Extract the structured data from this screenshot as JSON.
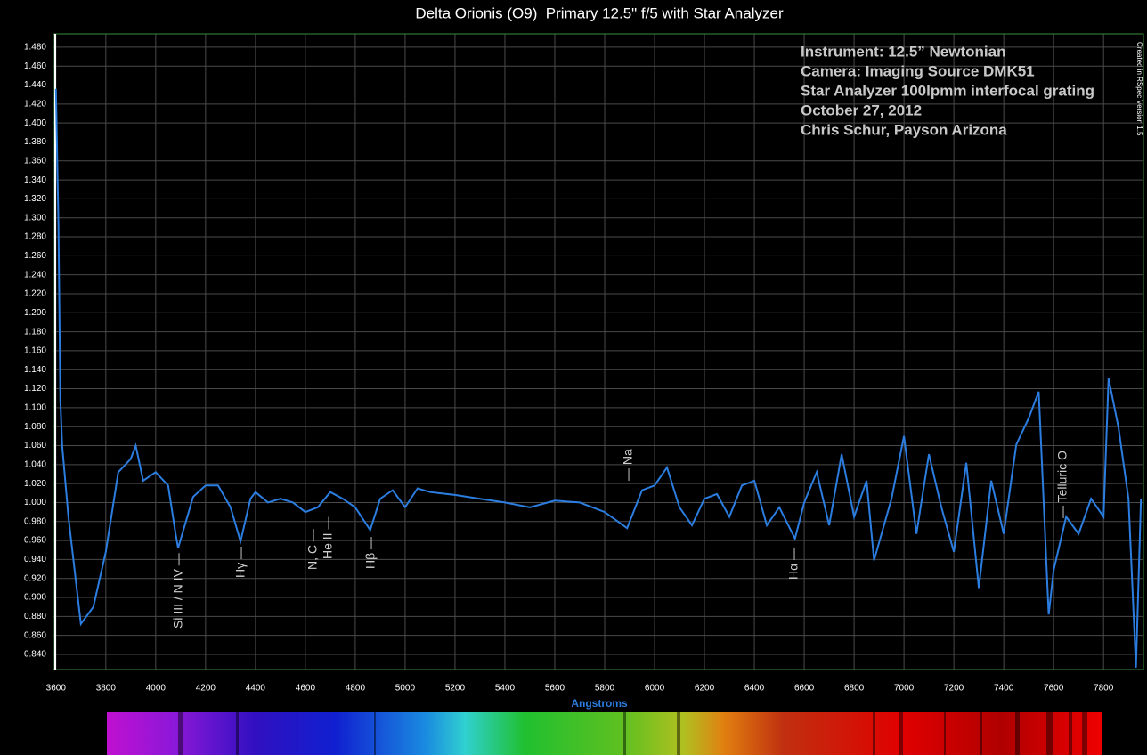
{
  "chart_data": {
    "type": "line",
    "title": "Delta Orionis (O9)  Primary 12.5\" f/5 with Star Analyzer",
    "x_label": "Angstroms",
    "watermark": "Created in RSpec Version 1.5",
    "info_lines": [
      "Instrument:  12.5” Newtonian",
      "Camera:  Imaging Source DMK51",
      "Star Analyzer 100lpmm interfocal grating",
      "October 27, 2012",
      "Chris Schur, Payson Arizona"
    ],
    "line_labels": [
      "Si III / N IV —",
      "Hγ —",
      "N, C —",
      "He II —",
      "Hβ —",
      "— Na",
      "Hα —",
      "— Telluric O"
    ],
    "color": "#2b7de0",
    "grid": true,
    "xlim": [
      3590,
      7960
    ],
    "ylim": [
      0.824,
      1.494
    ],
    "xticks": [
      3600,
      3800,
      4000,
      4200,
      4400,
      4600,
      4800,
      5000,
      5200,
      5400,
      5600,
      5800,
      6000,
      6200,
      6400,
      6600,
      6800,
      7000,
      7200,
      7400,
      7600,
      7800
    ],
    "yticks": [
      {
        "value": 0.84,
        "label": "0.840"
      },
      {
        "value": 0.86,
        "label": "0.860"
      },
      {
        "value": 0.88,
        "label": "0.880"
      },
      {
        "value": 0.9,
        "label": "0.900"
      },
      {
        "value": 0.92,
        "label": "0.920"
      },
      {
        "value": 0.94,
        "label": "0.940"
      },
      {
        "value": 0.96,
        "label": "0.960"
      },
      {
        "value": 0.98,
        "label": "0.980"
      },
      {
        "value": 1.0,
        "label": "1.000"
      },
      {
        "value": 1.02,
        "label": "1.020"
      },
      {
        "value": 1.04,
        "label": "1.040"
      },
      {
        "value": 1.06,
        "label": "1.060"
      },
      {
        "value": 1.08,
        "label": "1.080"
      },
      {
        "value": 1.1,
        "label": "1.100"
      },
      {
        "value": 1.12,
        "label": "1.120"
      },
      {
        "value": 1.14,
        "label": "1.140"
      },
      {
        "value": 1.16,
        "label": "1.160"
      },
      {
        "value": 1.18,
        "label": "1.180"
      },
      {
        "value": 1.2,
        "label": "1.200"
      },
      {
        "value": 1.22,
        "label": "1.220"
      },
      {
        "value": 1.24,
        "label": "1.240"
      },
      {
        "value": 1.26,
        "label": "1.260"
      },
      {
        "value": 1.28,
        "label": "1.280"
      },
      {
        "value": 1.3,
        "label": "1.300"
      },
      {
        "value": 1.32,
        "label": "1.320"
      },
      {
        "value": 1.34,
        "label": "1.340"
      },
      {
        "value": 1.36,
        "label": "1.360"
      },
      {
        "value": 1.38,
        "label": "1.380"
      },
      {
        "value": 1.4,
        "label": "1.400"
      },
      {
        "value": 1.42,
        "label": "1.420"
      },
      {
        "value": 1.44,
        "label": "1.440"
      },
      {
        "value": 1.46,
        "label": "1.460"
      },
      {
        "value": 1.48,
        "label": "1.480"
      }
    ],
    "x": [
      3600,
      3610,
      3618,
      3625,
      3650,
      3700,
      3750,
      3800,
      3850,
      3900,
      3920,
      3950,
      4000,
      4050,
      4080,
      4090,
      4150,
      4200,
      4250,
      4300,
      4340,
      4380,
      4400,
      4450,
      4500,
      4550,
      4600,
      4650,
      4700,
      4750,
      4800,
      4860,
      4900,
      4950,
      5000,
      5050,
      5100,
      5200,
      5300,
      5400,
      5500,
      5600,
      5700,
      5800,
      5890,
      5950,
      6000,
      6050,
      6100,
      6150,
      6200,
      6250,
      6300,
      6350,
      6400,
      6450,
      6500,
      6563,
      6600,
      6650,
      6700,
      6750,
      6800,
      6850,
      6880,
      6950,
      7000,
      7050,
      7100,
      7150,
      7200,
      7250,
      7300,
      7350,
      7400,
      7450,
      7500,
      7540,
      7580,
      7600,
      7650,
      7700,
      7750,
      7800,
      7820,
      7860,
      7900,
      7930,
      7950
    ],
    "values": [
      1.436,
      1.295,
      1.107,
      1.06,
      0.985,
      0.872,
      0.89,
      0.948,
      1.032,
      1.046,
      1.06,
      1.023,
      1.032,
      1.018,
      0.967,
      0.952,
      1.006,
      1.018,
      1.018,
      0.995,
      0.959,
      1.004,
      1.011,
      1.0,
      1.004,
      1.0,
      0.99,
      0.995,
      1.011,
      1.004,
      0.995,
      0.971,
      1.004,
      1.013,
      0.995,
      1.015,
      1.011,
      1.008,
      1.004,
      1.0,
      0.995,
      1.002,
      1.0,
      0.99,
      0.973,
      1.013,
      1.018,
      1.037,
      0.995,
      0.976,
      1.004,
      1.009,
      0.985,
      1.018,
      1.023,
      0.976,
      0.995,
      0.962,
      1.0,
      1.032,
      0.976,
      1.051,
      0.985,
      1.023,
      0.939,
      1.004,
      1.07,
      0.967,
      1.051,
      0.995,
      0.948,
      1.042,
      0.91,
      1.023,
      0.967,
      1.061,
      1.089,
      1.117,
      0.882,
      0.929,
      0.985,
      0.967,
      1.004,
      0.985,
      1.131,
      1.079,
      1.004,
      0.826,
      1.004
    ]
  }
}
